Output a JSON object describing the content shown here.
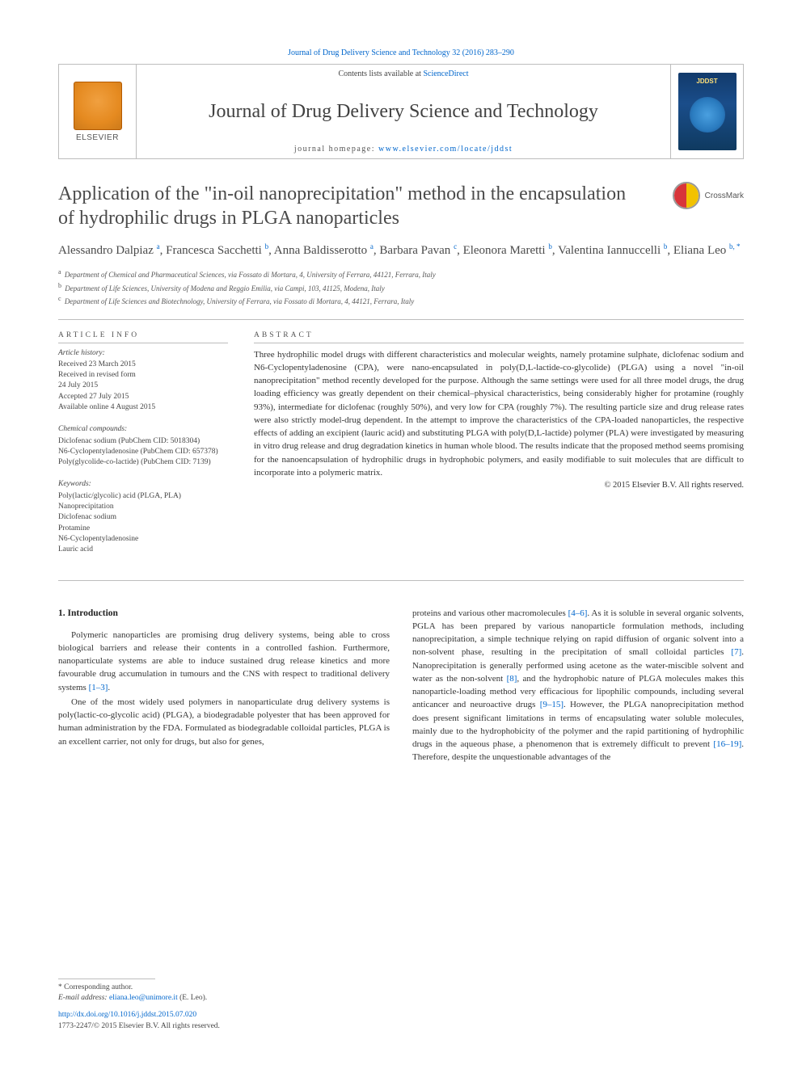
{
  "meta": {
    "citation": "Journal of Drug Delivery Science and Technology 32 (2016) 283–290",
    "sciencedirect_prefix": "Contents lists available at ",
    "sciencedirect_link": "ScienceDirect",
    "journal_title": "Journal of Drug Delivery Science and Technology",
    "homepage_prefix": "journal homepage: ",
    "homepage_url": "www.elsevier.com/locate/jddst",
    "elsevier_brand": "ELSEVIER",
    "cover_badge": "JDDST",
    "crossmark_label": "CrossMark"
  },
  "colors": {
    "link": "#0066cc",
    "text": "#2b2b2b",
    "rule": "#bdbdbd",
    "elsevier_orange": "#e58a20",
    "cover_bg": "#1a4d8a",
    "crossmark_red": "#d8353a",
    "crossmark_yellow": "#f2c200",
    "heading_gray": "#4a4a4a"
  },
  "typography": {
    "body_pt": 11,
    "title_pt": 24,
    "authors_pt": 15,
    "small_pt": 9.5,
    "abstract_pt": 11,
    "line_height": 1.48,
    "font_family": "Georgia / Times-like serif"
  },
  "article": {
    "title": "Application of the \"in-oil nanoprecipitation\" method in the encapsulation of hydrophilic drugs in PLGA nanoparticles",
    "authors_html": "Alessandro Dalpiaz <sup>a</sup>, Francesca Sacchetti <sup>b</sup>, Anna Baldisserotto <sup>a</sup>, Barbara Pavan <sup>c</sup>, Eleonora Maretti <sup>b</sup>, Valentina Iannuccelli <sup>b</sup>, Eliana Leo <sup>b, *</sup>",
    "affiliations": [
      {
        "key": "a",
        "text": "Department of Chemical and Pharmaceutical Sciences, via Fossato di Mortara, 4, University of Ferrara, 44121, Ferrara, Italy"
      },
      {
        "key": "b",
        "text": "Department of Life Sciences, University of Modena and Reggio Emilia, via Campi, 103, 41125, Modena, Italy"
      },
      {
        "key": "c",
        "text": "Department of Life Sciences and Biotechnology, University of Ferrara, via Fossato di Mortara, 4, 44121, Ferrara, Italy"
      }
    ]
  },
  "info": {
    "heading": "ARTICLE INFO",
    "history_label": "Article history:",
    "history_lines": [
      "Received 23 March 2015",
      "Received in revised form",
      "24 July 2015",
      "Accepted 27 July 2015",
      "Available online 4 August 2015"
    ],
    "compounds_label": "Chemical compounds:",
    "compounds_lines": [
      "Diclofenac sodium (PubChem CID: 5018304)",
      "N6-Cyclopentyladenosine (PubChem CID: 657378)",
      "Poly(glycolide-co-lactide) (PubChem CID: 7139)"
    ],
    "keywords_label": "Keywords:",
    "keywords_lines": [
      "Poly(lactic/glycolic) acid (PLGA, PLA)",
      "Nanoprecipitation",
      "Diclofenac sodium",
      "Protamine",
      "N6-Cyclopentyladenosine",
      "Lauric acid"
    ]
  },
  "abstract": {
    "heading": "ABSTRACT",
    "text": "Three hydrophilic model drugs with different characteristics and molecular weights, namely protamine sulphate, diclofenac sodium and N6-Cyclopentyladenosine (CPA), were nano-encapsulated in poly(D,L-lactide-co-glycolide) (PLGA) using a novel \"in-oil nanoprecipitation\" method recently developed for the purpose. Although the same settings were used for all three model drugs, the drug loading efficiency was greatly dependent on their chemical–physical characteristics, being considerably higher for protamine (roughly 93%), intermediate for diclofenac (roughly 50%), and very low for CPA (roughly 7%). The resulting particle size and drug release rates were also strictly model-drug dependent. In the attempt to improve the characteristics of the CPA-loaded nanoparticles, the respective effects of adding an excipient (lauric acid) and substituting PLGA with poly(D,L-lactide) polymer (PLA) were investigated by measuring in vitro drug release and drug degradation kinetics in human whole blood. The results indicate that the proposed method seems promising for the nanoencapsulation of hydrophilic drugs in hydrophobic polymers, and easily modifiable to suit molecules that are difficult to incorporate into a polymeric matrix.",
    "copyright": "© 2015 Elsevier B.V. All rights reserved."
  },
  "body": {
    "heading": "1. Introduction",
    "p1": "Polymeric nanoparticles are promising drug delivery systems, being able to cross biological barriers and release their contents in a controlled fashion. Furthermore, nanoparticulate systems are able to induce sustained drug release kinetics and more favourable drug accumulation in tumours and the CNS with respect to traditional delivery systems ",
    "p1_ref": "[1–3]",
    "p1_tail": ".",
    "p2": "One of the most widely used polymers in nanoparticulate drug delivery systems is poly(lactic-co-glycolic acid) (PLGA), a biodegradable polyester that has been approved for human administration by the FDA. Formulated as biodegradable colloidal particles, PLGA is an excellent carrier, not only for drugs, but also for genes,",
    "p3a": "proteins and various other macromolecules ",
    "p3a_ref": "[4–6]",
    "p3b": ". As it is soluble in several organic solvents, PGLA has been prepared by various nanoparticle formulation methods, including nanoprecipitation, a simple technique relying on rapid diffusion of organic solvent into a non-solvent phase, resulting in the precipitation of small colloidal particles ",
    "p3b_ref": "[7]",
    "p3c": ". Nanoprecipitation is generally performed using acetone as the water-miscible solvent and water as the non-solvent ",
    "p3c_ref": "[8]",
    "p3d": ", and the hydrophobic nature of PLGA molecules makes this nanoparticle-loading method very efficacious for lipophilic compounds, including several anticancer and neuroactive drugs ",
    "p3d_ref": "[9–15]",
    "p3e": ". However, the PLGA nanoprecipitation method does present significant limitations in terms of encapsulating water soluble molecules, mainly due to the hydrophobicity of the polymer and the rapid partitioning of hydrophilic drugs in the aqueous phase, a phenomenon that is extremely difficult to prevent ",
    "p3e_ref": "[16–19]",
    "p3f": ". Therefore, despite the unquestionable advantages of the"
  },
  "footer": {
    "corr_label": "* Corresponding author.",
    "email_label": "E-mail address: ",
    "email": "eliana.leo@unimore.it",
    "email_who": " (E. Leo).",
    "doi": "http://dx.doi.org/10.1016/j.jddst.2015.07.020",
    "issn_line": "1773-2247/© 2015 Elsevier B.V. All rights reserved."
  }
}
